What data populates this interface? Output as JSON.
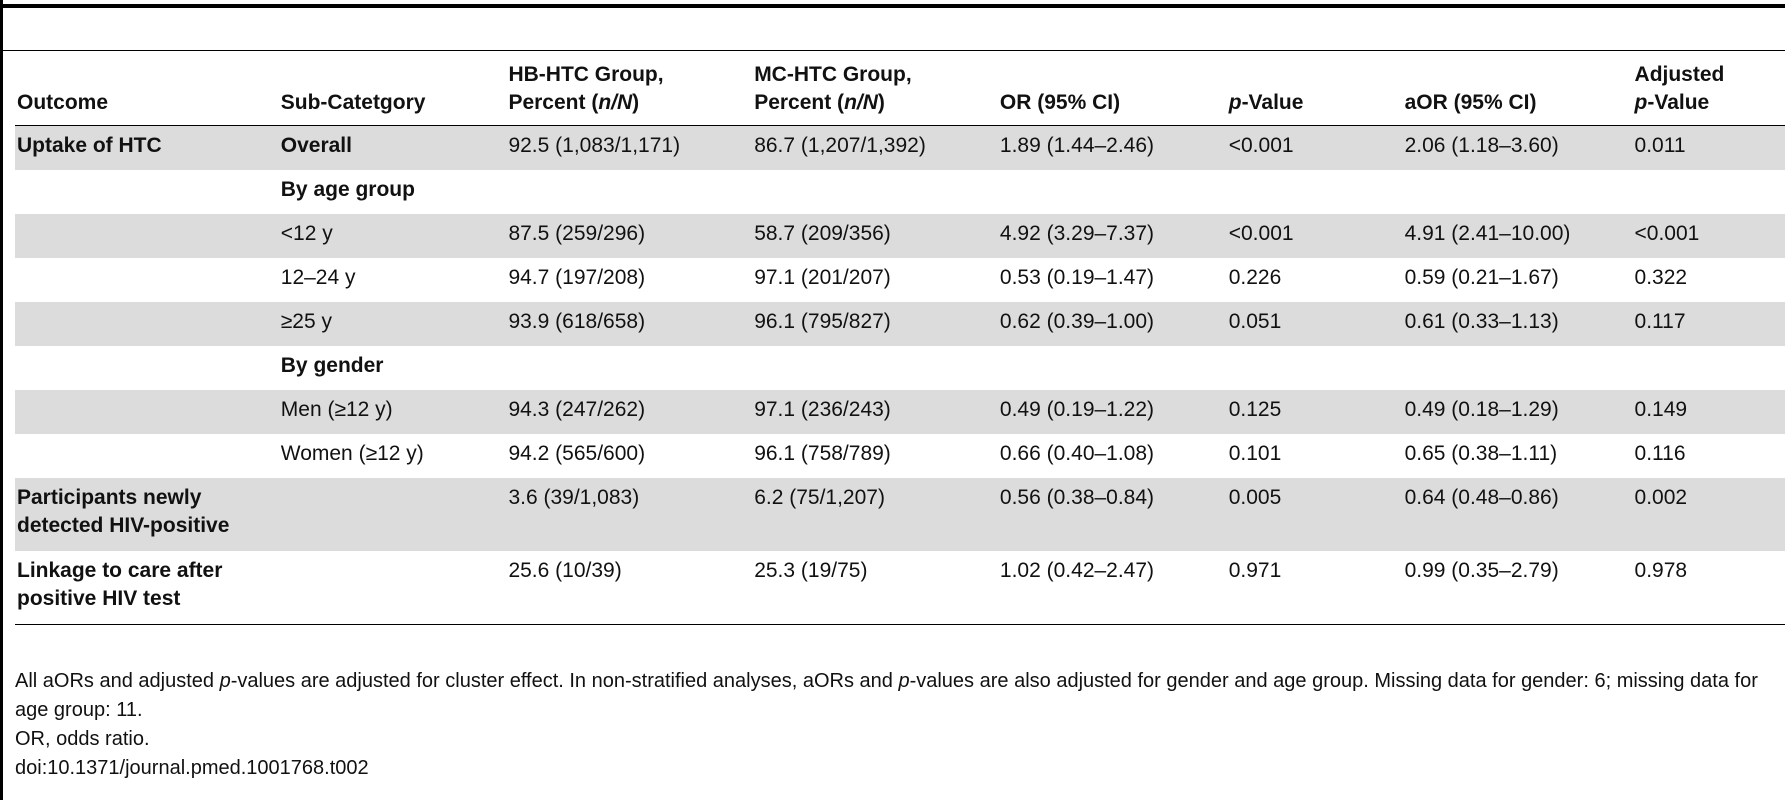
{
  "table": {
    "headers": {
      "outcome": "Outcome",
      "subcategory": "Sub-Catetgory",
      "hb_line1": "HB-HTC Group,",
      "hb_line2_pre": "Percent (",
      "hb_line2_ital": "n/N",
      "hb_line2_post": ")",
      "mc_line1": "MC-HTC Group,",
      "mc_line2_pre": "Percent (",
      "mc_line2_ital": "n/N",
      "mc_line2_post": ")",
      "or": "OR (95% CI)",
      "p_ital": "p",
      "p_rest": "-Value",
      "aor": "aOR (95% CI)",
      "adj_line1": "Adjusted",
      "adj_p_ital": "p",
      "adj_p_rest": "-Value"
    },
    "rows": [
      {
        "outcome": "Uptake of HTC",
        "sub": "Overall",
        "sub_bold": true,
        "hb": "92.5 (1,083/1,171)",
        "mc": "86.7 (1,207/1,392)",
        "or": "1.89 (1.44–2.46)",
        "p": "<0.001",
        "aor": "2.06 (1.18–3.60)",
        "adj_p": "0.011"
      },
      {
        "outcome": "",
        "sub": "By age group",
        "sub_bold": true,
        "hb": "",
        "mc": "",
        "or": "",
        "p": "",
        "aor": "",
        "adj_p": ""
      },
      {
        "outcome": "",
        "sub": "<12 y",
        "sub_bold": false,
        "hb": "87.5 (259/296)",
        "mc": "58.7 (209/356)",
        "or": "4.92 (3.29–7.37)",
        "p": "<0.001",
        "aor": "4.91 (2.41–10.00)",
        "adj_p": "<0.001"
      },
      {
        "outcome": "",
        "sub": "12–24 y",
        "sub_bold": false,
        "hb": "94.7 (197/208)",
        "mc": "97.1 (201/207)",
        "or": "0.53 (0.19–1.47)",
        "p": "0.226",
        "aor": "0.59 (0.21–1.67)",
        "adj_p": "0.322"
      },
      {
        "outcome": "",
        "sub": "≥25 y",
        "sub_bold": false,
        "hb": "93.9 (618/658)",
        "mc": "96.1 (795/827)",
        "or": "0.62 (0.39–1.00)",
        "p": "0.051",
        "aor": "0.61 (0.33–1.13)",
        "adj_p": "0.117"
      },
      {
        "outcome": "",
        "sub": "By gender",
        "sub_bold": true,
        "hb": "",
        "mc": "",
        "or": "",
        "p": "",
        "aor": "",
        "adj_p": ""
      },
      {
        "outcome": "",
        "sub": "Men (≥12 y)",
        "sub_bold": false,
        "hb": "94.3 (247/262)",
        "mc": "97.1 (236/243)",
        "or": "0.49 (0.19–1.22)",
        "p": "0.125",
        "aor": "0.49 (0.18–1.29)",
        "adj_p": "0.149"
      },
      {
        "outcome": "",
        "sub": "Women (≥12 y)",
        "sub_bold": false,
        "hb": "94.2 (565/600)",
        "mc": "96.1 (758/789)",
        "or": "0.66 (0.40–1.08)",
        "p": "0.101",
        "aor": "0.65 (0.38–1.11)",
        "adj_p": "0.116"
      },
      {
        "outcome": "Participants newly detected HIV-positive",
        "sub": "",
        "sub_bold": false,
        "hb": "3.6 (39/1,083)",
        "mc": "6.2 (75/1,207)",
        "or": "0.56 (0.38–0.84)",
        "p": "0.005",
        "aor": "0.64 (0.48–0.86)",
        "adj_p": "0.002"
      },
      {
        "outcome": "Linkage to care after positive HIV test",
        "sub": "",
        "sub_bold": false,
        "hb": "25.6 (10/39)",
        "mc": "25.3 (19/75)",
        "or": "1.02 (0.42–2.47)",
        "p": "0.971",
        "aor": "0.99 (0.35–2.79)",
        "adj_p": "0.978"
      }
    ]
  },
  "footnotes": {
    "line1_a": "All aORs and adjusted ",
    "line1_ital1": "p",
    "line1_b": "-values are adjusted for cluster effect. In non-stratified analyses, aORs and ",
    "line1_ital2": "p",
    "line1_c": "-values are also adjusted for gender and age group. Missing data for gender: 6; missing data for age group: 11.",
    "abbrev": "OR, odds ratio.",
    "doi": "doi:10.1371/journal.pmed.1001768.t002"
  }
}
